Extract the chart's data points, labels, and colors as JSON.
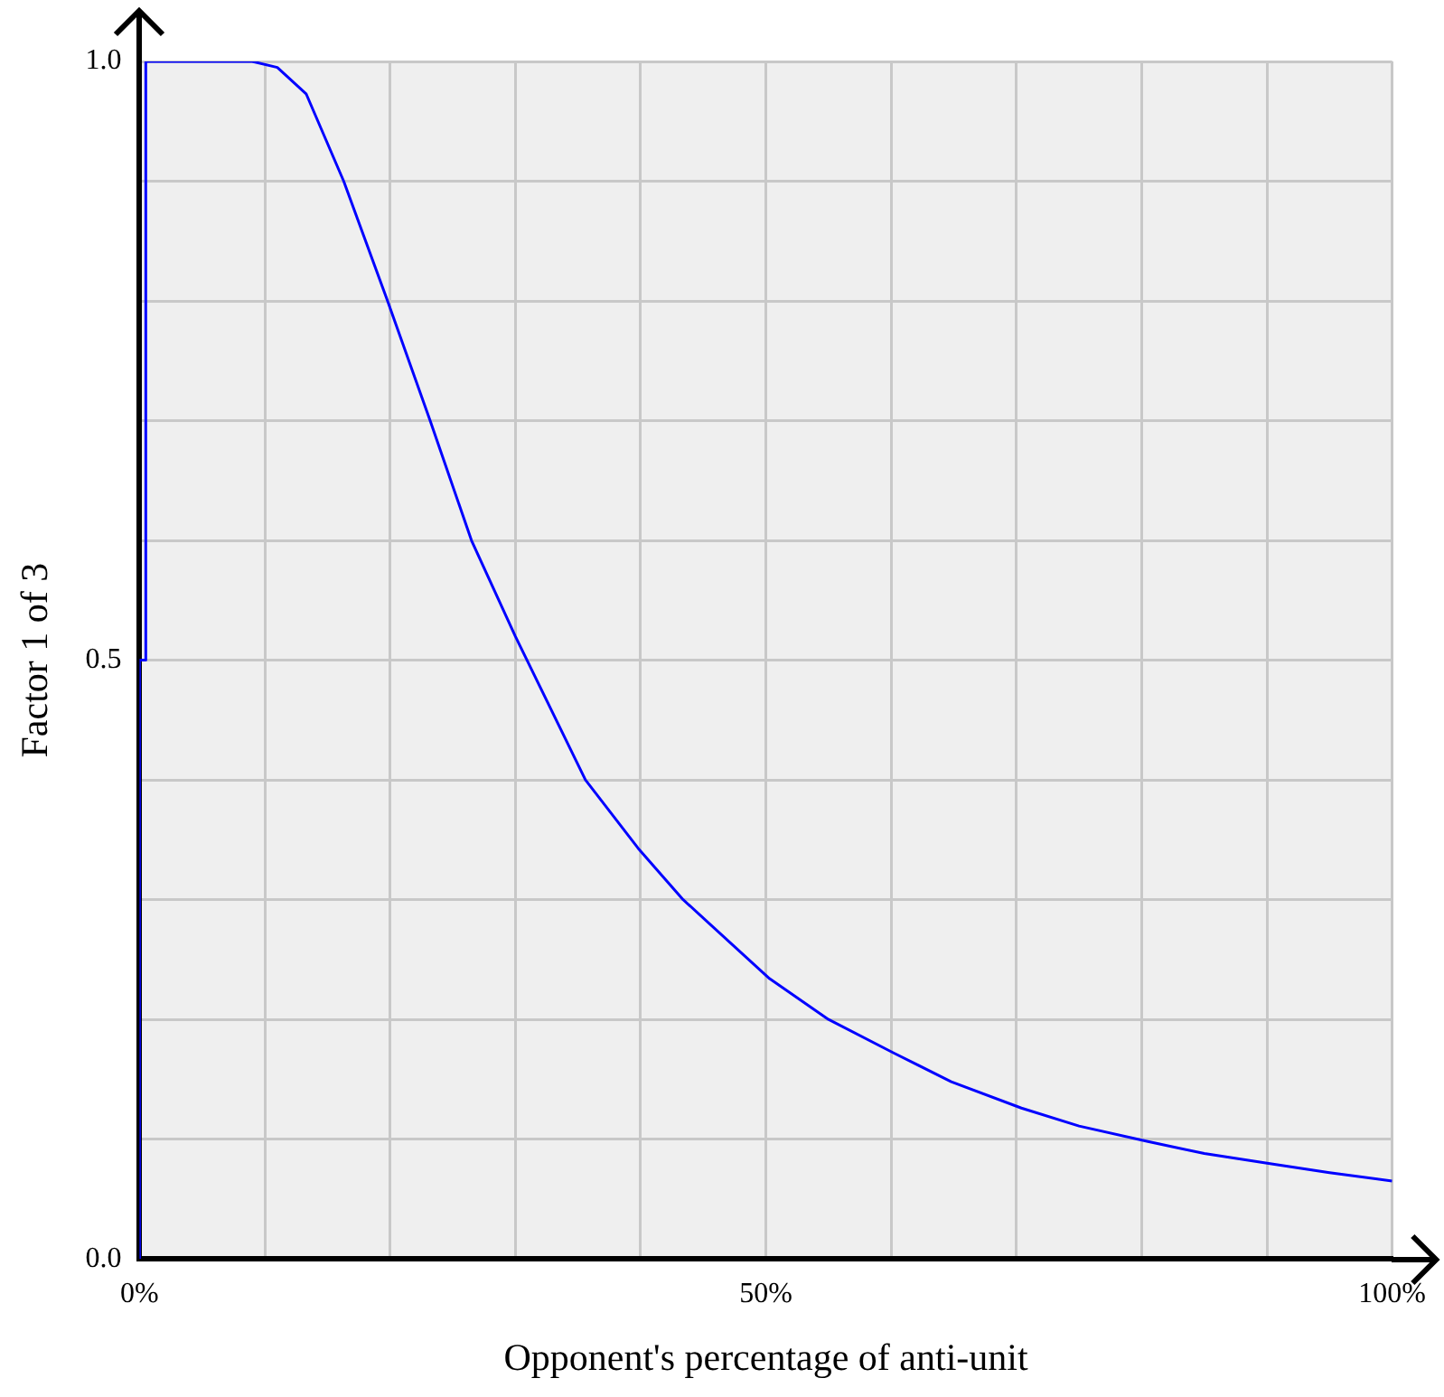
{
  "chart_data": {
    "type": "line",
    "xlabel": "Opponent's percentage of anti-unit",
    "ylabel": "Factor 1 of 3",
    "x": [
      0,
      0,
      0.5,
      0.5,
      9,
      11,
      13.3,
      16.3,
      19.8,
      23.2,
      26.5,
      30,
      35.6,
      39.8,
      43.4,
      50.3,
      55,
      60.2,
      64.8,
      70.4,
      75,
      80.5,
      85,
      90.6,
      95,
      100
    ],
    "values": [
      0,
      0.5,
      0.5,
      1,
      1,
      0.995,
      0.973,
      0.9,
      0.8,
      0.7,
      0.6,
      0.52,
      0.4,
      0.343,
      0.3,
      0.234,
      0.2,
      0.172,
      0.148,
      0.126,
      0.111,
      0.098,
      0.088,
      0.079,
      0.072,
      0.065
    ],
    "color": "#0000ff",
    "marker": "none",
    "line_style": "solid",
    "xlim": [
      0,
      100
    ],
    "ylim": [
      0,
      1
    ],
    "xticks": [
      {
        "value": 0,
        "label": "0%"
      },
      {
        "value": 10,
        "label": null
      },
      {
        "value": 20,
        "label": null
      },
      {
        "value": 30,
        "label": null
      },
      {
        "value": 40,
        "label": null
      },
      {
        "value": 50,
        "label": "50%"
      },
      {
        "value": 60,
        "label": null
      },
      {
        "value": 70,
        "label": null
      },
      {
        "value": 80,
        "label": null
      },
      {
        "value": 90,
        "label": null
      },
      {
        "value": 100,
        "label": "100%"
      }
    ],
    "yticks": [
      {
        "value": 0,
        "label": "0.0"
      },
      {
        "value": 0.1,
        "label": null
      },
      {
        "value": 0.2,
        "label": null
      },
      {
        "value": 0.3,
        "label": null
      },
      {
        "value": 0.4,
        "label": null
      },
      {
        "value": 0.5,
        "label": "0.5"
      },
      {
        "value": 0.6,
        "label": null
      },
      {
        "value": 0.7,
        "label": null
      },
      {
        "value": 0.8,
        "label": null
      },
      {
        "value": 0.9,
        "label": null
      },
      {
        "value": 1,
        "label": "1.0"
      }
    ],
    "grid": true
  }
}
